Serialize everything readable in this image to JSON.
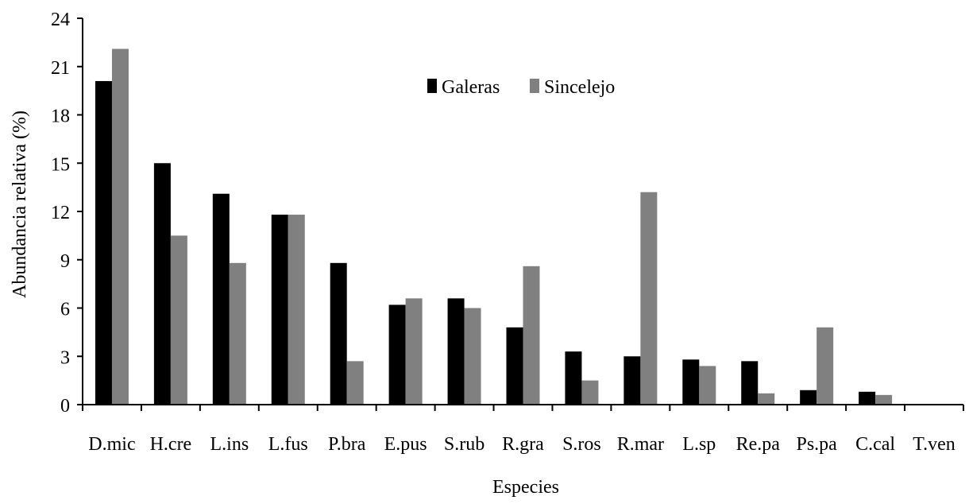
{
  "chart_data": {
    "type": "bar",
    "xlabel": "Especies",
    "ylabel": "Abundancia relativa (%)",
    "ylim": [
      0,
      24
    ],
    "yticks": [
      "0",
      "3",
      "6",
      "9",
      "12",
      "15",
      "18",
      "21",
      "24"
    ],
    "grid": false,
    "legend_position": "top-center",
    "categories": [
      "D.mic",
      "H.cre",
      "L.ins",
      "L.fus",
      "P.bra",
      "E.pus",
      "S.rub",
      "R.gra",
      "S.ros",
      "R.mar",
      "L.sp",
      "Re.pa",
      "Ps.pa",
      "C.cal",
      "T.ven"
    ],
    "series": [
      {
        "name": "Galeras",
        "color": "#000000",
        "values": [
          20.1,
          15.0,
          13.1,
          11.8,
          8.8,
          6.2,
          6.6,
          4.8,
          3.3,
          3.0,
          2.8,
          2.7,
          0.9,
          0.8,
          0
        ]
      },
      {
        "name": "Sincelejo",
        "color": "#808080",
        "values": [
          22.1,
          10.5,
          8.8,
          11.8,
          2.7,
          6.6,
          6.0,
          8.6,
          1.5,
          13.2,
          2.4,
          0.7,
          4.8,
          0.6,
          0
        ]
      }
    ]
  }
}
